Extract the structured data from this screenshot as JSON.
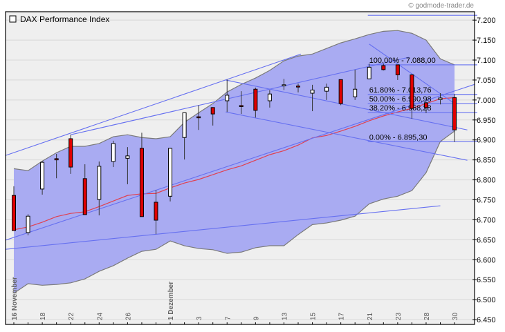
{
  "copyright": "© godmode-trader.de",
  "chart_data": {
    "type": "candlestick",
    "title": "DAX Performance Index",
    "ylim": [
      6438,
      7221
    ],
    "yticks": [
      7200,
      7150,
      7100,
      7050,
      7000,
      6950,
      6900,
      6850,
      6800,
      6750,
      6700,
      6650,
      6600,
      6550,
      6500,
      6450
    ],
    "ytick_labels": [
      "7.200",
      "7.150",
      "7.100",
      "7.050",
      "7.000",
      "6.950",
      "6.900",
      "6.850",
      "6.800",
      "6.750",
      "6.700",
      "6.650",
      "6.600",
      "6.550",
      "6.500",
      "6.450"
    ],
    "grid": true,
    "x_labels": [
      {
        "index": 0,
        "text": "16 November",
        "month": true
      },
      {
        "index": 2,
        "text": "18"
      },
      {
        "index": 4,
        "text": "22"
      },
      {
        "index": 6,
        "text": "24"
      },
      {
        "index": 8,
        "text": "26"
      },
      {
        "index": 11,
        "text": "1 Dezember",
        "month": true
      },
      {
        "index": 13,
        "text": "3"
      },
      {
        "index": 15,
        "text": "7"
      },
      {
        "index": 17,
        "text": "9"
      },
      {
        "index": 19,
        "text": "13"
      },
      {
        "index": 21,
        "text": "15"
      },
      {
        "index": 23,
        "text": "17"
      },
      {
        "index": 25,
        "text": "21"
      },
      {
        "index": 27,
        "text": "23"
      },
      {
        "index": 29,
        "text": "28"
      },
      {
        "index": 31,
        "text": "30"
      }
    ],
    "ohlc": [
      [
        6761,
        6784,
        6673,
        6673
      ],
      [
        6668,
        6714,
        6661,
        6709
      ],
      [
        6777,
        6847,
        6763,
        6844
      ],
      [
        6853,
        6865,
        6804,
        6850
      ],
      [
        6903,
        6913,
        6815,
        6832
      ],
      [
        6803,
        6839,
        6713,
        6713
      ],
      [
        6751,
        6846,
        6711,
        6834
      ],
      [
        6846,
        6898,
        6832,
        6891
      ],
      [
        6854,
        6882,
        6789,
        6860
      ],
      [
        6879,
        6918,
        6708,
        6708
      ],
      [
        6744,
        6775,
        6664,
        6699
      ],
      [
        6759,
        6880,
        6746,
        6879
      ],
      [
        6906,
        6968,
        6851,
        6968
      ],
      [
        6958,
        6987,
        6925,
        6957
      ],
      [
        6981,
        6982,
        6936,
        6965
      ],
      [
        6998,
        7051,
        6970,
        7012
      ],
      [
        6986,
        7022,
        6965,
        6985
      ],
      [
        7027,
        7031,
        6956,
        6974
      ],
      [
        6998,
        7025,
        6981,
        7015
      ],
      [
        7036,
        7053,
        7025,
        7038
      ],
      [
        7035,
        7041,
        7019,
        7033
      ],
      [
        7017,
        7038,
        6972,
        7025
      ],
      [
        7022,
        7041,
        7000,
        7032
      ],
      [
        7051,
        7051,
        6987,
        6991
      ],
      [
        7008,
        7076,
        7000,
        7027
      ],
      [
        7053,
        7091,
        7053,
        7082
      ],
      [
        7086,
        7091,
        7074,
        7076
      ],
      [
        7088,
        7088,
        7050,
        7063
      ],
      [
        7063,
        7065,
        6953,
        6979
      ],
      [
        6993,
        6996,
        6967,
        6981
      ],
      [
        7001,
        7017,
        6989,
        7005
      ],
      [
        7006,
        7015,
        6895,
        6925
      ]
    ],
    "bollinger_upper": [
      6828,
      6823,
      6847,
      6868,
      6884,
      6884,
      6891,
      6908,
      6913,
      6906,
      6903,
      6908,
      6944,
      6968,
      6991,
      7020,
      7039,
      7055,
      7074,
      7098,
      7110,
      7115,
      7129,
      7143,
      7153,
      7164,
      7172,
      7174,
      7167,
      7150,
      7103,
      7088
    ],
    "bollinger_lower": [
      6516,
      6540,
      6536,
      6538,
      6542,
      6552,
      6571,
      6585,
      6604,
      6621,
      6626,
      6647,
      6635,
      6628,
      6625,
      6616,
      6619,
      6630,
      6635,
      6635,
      6663,
      6688,
      6692,
      6699,
      6709,
      6740,
      6752,
      6759,
      6773,
      6818,
      6896,
      6922
    ],
    "moving_average": [
      6675,
      6682,
      6694,
      6708,
      6716,
      6720,
      6733,
      6747,
      6761,
      6765,
      6766,
      6780,
      6792,
      6801,
      6813,
      6825,
      6835,
      6849,
      6863,
      6873,
      6887,
      6905,
      6911,
      6922,
      6934,
      6948,
      6960,
      6970,
      6979,
      6991,
      7003,
      7006
    ],
    "trendlines": [
      {
        "from": [
          -0.6,
          6861
        ],
        "to": [
          20.2,
          7115
        ]
      },
      {
        "from": [
          4.0,
          6913
        ],
        "to": [
          27.8,
          7107
        ]
      },
      {
        "from": [
          -0.6,
          6649
        ],
        "to": [
          32.4,
          7039
        ]
      },
      {
        "from": [
          -0.6,
          6626
        ],
        "to": [
          30.0,
          6735
        ]
      },
      {
        "from": [
          14.9,
          7050
        ],
        "to": [
          31.9,
          6925
        ]
      },
      {
        "from": [
          14.9,
          6970
        ],
        "to": [
          31.9,
          6849
        ]
      },
      {
        "from": [
          25.0,
          7140
        ],
        "to": [
          31.0,
          6991
        ]
      }
    ],
    "fibonacci": {
      "start_index": 24.9,
      "levels": [
        {
          "price": 7212,
          "label": ""
        },
        {
          "price": 7088.0,
          "label": "100.00% - 7.088,00"
        },
        {
          "price": 7013.76,
          "label": "61.80% - 7.013,76"
        },
        {
          "price": 6990.98,
          "label": "50.00% - 6.990,98"
        },
        {
          "price": 6968.28,
          "label": "38.20% - 6.968,28"
        },
        {
          "price": 6895.3,
          "label": "0.00% - 6.895,30"
        }
      ]
    },
    "colors": {
      "background": "#efefef",
      "grid": "#d8d8d8",
      "band_fill": "#a9abf2",
      "band_outline": "#7a7a7a",
      "moving_average": "#e04050",
      "trendline": "#6670f0",
      "up_candle": "#ffffff",
      "down_candle": "#e00000",
      "wick": "#333333"
    }
  }
}
